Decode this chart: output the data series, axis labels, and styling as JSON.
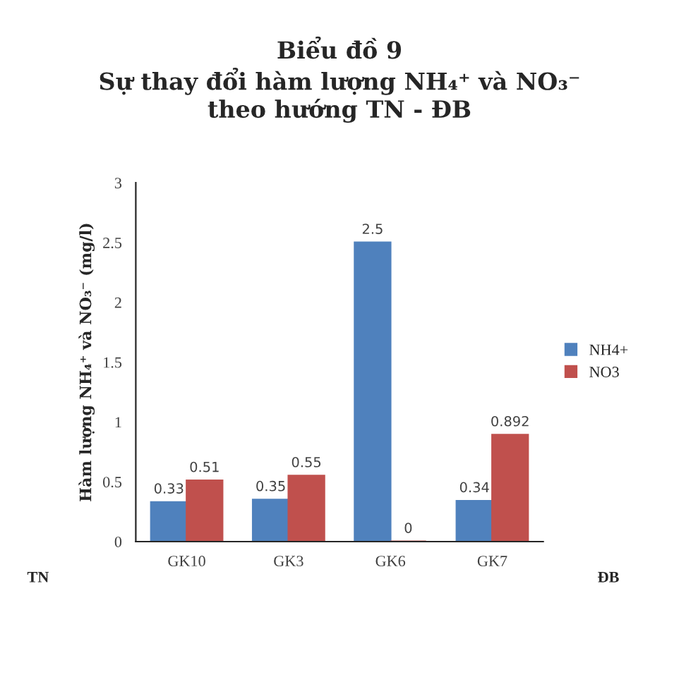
{
  "chart_data": {
    "type": "bar",
    "title": "Biểu đồ 9\nSự thay đổi hàm lượng NH₄⁺ và NO₃⁻\ntheo hướng TN - ĐB",
    "ylabel": "Hàm lượng NH₄⁺ và NO₃⁻ (mg/l)",
    "categories": [
      "GK10",
      "GK3",
      "GK6",
      "GK7"
    ],
    "series": [
      {
        "name": "NH4+",
        "color": "#4f81bd",
        "values": [
          0.33,
          0.35,
          2.5,
          0.34
        ]
      },
      {
        "name": "NO3",
        "color": "#c0504d",
        "values": [
          0.51,
          0.55,
          0,
          0.892
        ]
      }
    ],
    "ylim": [
      0,
      3
    ],
    "yticks": [
      0,
      0.5,
      1,
      1.5,
      2,
      2.5,
      3
    ],
    "data_labels": true,
    "legend": "right",
    "grid": false,
    "annotations": [
      "TN",
      "ĐB"
    ]
  }
}
